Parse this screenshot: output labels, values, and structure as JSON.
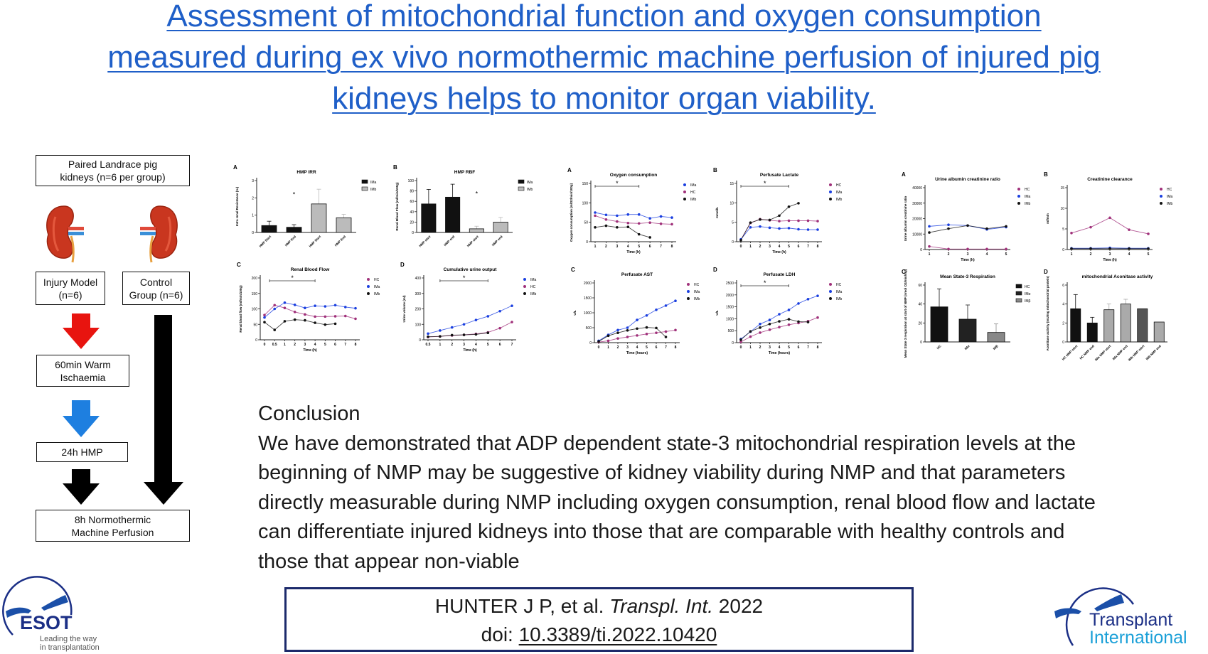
{
  "title": {
    "lines": [
      "Assessment of mitochondrial function and oxygen consumption",
      "measured during ex vivo normothermic machine perfusion of injured pig",
      "kidneys helps to monitor organ viability."
    ]
  },
  "flowchart": {
    "start": "Paired Landrace pig kidneys (n=6 per group)",
    "injury": "Injury Model (n=6)",
    "control": "Control Group (n=6)",
    "warm_ischaemia": "60min Warm Ischaemia",
    "hmp": "24h HMP",
    "nmp": "8h Normothermic Machine Perfusion",
    "arrow_colors": {
      "warm": "#e8140f",
      "hmp": "#1e7fe0",
      "nmp": "#000000"
    }
  },
  "colors": {
    "title": "#1f5fc8",
    "IMa": "#1a3fe0",
    "HC": "#a0307a",
    "IMb": "#111111",
    "cite_border": "#1c2a6b"
  },
  "chart_data": [
    {
      "panel": "A",
      "type": "bar",
      "title": "HMP IRR",
      "ylabel": "Intra renal Resistance (ru)",
      "xlabel": "",
      "ylim": [
        0,
        3
      ],
      "yticks": [
        0,
        1,
        2,
        3
      ],
      "categories": [
        "HMP Start",
        "HMP End",
        "HMP Start",
        "HMP End"
      ],
      "values": [
        0.4,
        0.3,
        1.65,
        0.85
      ],
      "errors": [
        0.25,
        0.15,
        0.85,
        0.2
      ],
      "colors": [
        "#111111",
        "#111111",
        "#bbbbbb",
        "#bbbbbb"
      ],
      "legend": [
        {
          "name": "IMa",
          "color": "#111111"
        },
        {
          "name": "IMb",
          "color": "#bbbbbb"
        }
      ],
      "star": {
        "index": 1,
        "value": 2.2
      }
    },
    {
      "panel": "B",
      "type": "bar",
      "title": "HMP RBF",
      "ylabel": "Renal Blood Flow (ml/min/100g)",
      "xlabel": "",
      "ylim": [
        0,
        100
      ],
      "yticks": [
        0,
        20,
        40,
        60,
        80,
        100
      ],
      "categories": [
        "HMP start",
        "HMP end",
        "HMP start",
        "HMP end"
      ],
      "values": [
        55,
        68,
        7,
        20
      ],
      "errors": [
        28,
        25,
        5,
        9
      ],
      "colors": [
        "#111111",
        "#111111",
        "#bbbbbb",
        "#bbbbbb"
      ],
      "legend": [
        {
          "name": "IMa",
          "color": "#111111"
        },
        {
          "name": "IMb",
          "color": "#bbbbbb"
        }
      ],
      "star": {
        "index": 2,
        "value": 75
      }
    },
    {
      "panel": "C",
      "type": "line",
      "title": "Renal Blood Flow",
      "ylabel": "Renal blood flow (ml/min/100g)",
      "xlabel": "Time (h)",
      "ylim": [
        0,
        200
      ],
      "yticks": [
        0,
        50,
        100,
        150,
        200
      ],
      "x": [
        "0",
        "0.5",
        "1",
        "2",
        "3",
        "4",
        "5",
        "6",
        "7",
        "8"
      ],
      "sig": [
        0.5,
        5
      ],
      "series": [
        {
          "name": "HC",
          "color": "#a0307a",
          "values": [
            80,
            112,
            103,
            90,
            82,
            75,
            75,
            76,
            77,
            68
          ]
        },
        {
          "name": "IMa",
          "color": "#1a3fe0",
          "values": [
            72,
            100,
            120,
            113,
            103,
            110,
            108,
            112,
            106,
            102
          ]
        },
        {
          "name": "IMb",
          "color": "#111111",
          "values": [
            57,
            32,
            60,
            65,
            63,
            55,
            49,
            52,
            null,
            null
          ]
        }
      ]
    },
    {
      "panel": "D",
      "type": "line",
      "title": "Cumulative urine output",
      "ylabel": "Urine volume (ml)",
      "xlabel": "Time (h)",
      "ylim": [
        0,
        400
      ],
      "yticks": [
        0,
        100,
        200,
        300,
        400
      ],
      "x": [
        "0.5",
        "1",
        "2",
        "3",
        "4",
        "5",
        "6",
        "7"
      ],
      "sig": [
        1,
        5
      ],
      "series": [
        {
          "name": "IMa",
          "color": "#1a3fe0",
          "values": [
            40,
            60,
            80,
            100,
            128,
            152,
            185,
            220
          ]
        },
        {
          "name": "HC",
          "color": "#a0307a",
          "values": [
            18,
            22,
            28,
            32,
            38,
            48,
            75,
            115
          ]
        },
        {
          "name": "IMb",
          "color": "#111111",
          "values": [
            20,
            22,
            30,
            32,
            35,
            45,
            null,
            null
          ]
        }
      ]
    },
    {
      "panel": "A",
      "type": "line",
      "title": "Oxygen consumption",
      "ylabel": "Oxygen consumption (mlO2/min/100g)",
      "xlabel": "Time (h)",
      "ylim": [
        0,
        150
      ],
      "yticks": [
        0,
        50,
        100,
        150
      ],
      "x": [
        "1",
        "2",
        "3",
        "4",
        "5",
        "6",
        "7",
        "8"
      ],
      "sig": [
        0,
        4
      ],
      "series": [
        {
          "name": "IMa",
          "color": "#1a3fe0",
          "values": [
            75,
            69,
            67,
            70,
            70,
            60,
            65,
            62
          ]
        },
        {
          "name": "HC",
          "color": "#a0307a",
          "values": [
            67,
            57,
            52,
            48,
            47,
            49,
            46,
            45
          ]
        },
        {
          "name": "IMb",
          "color": "#111111",
          "values": [
            37,
            41,
            37,
            38,
            19,
            11,
            null,
            null
          ]
        }
      ]
    },
    {
      "panel": "B",
      "type": "line",
      "title": "Perfusate Lactate",
      "ylabel": "mmol/L",
      "xlabel": "Time (h)",
      "ylim": [
        0,
        15
      ],
      "yticks": [
        0,
        5,
        10,
        15
      ],
      "x": [
        "0",
        "1",
        "2",
        "3",
        "4",
        "5",
        "6",
        "7",
        "8"
      ],
      "sig": [
        0,
        5
      ],
      "series": [
        {
          "name": "HC",
          "color": "#a0307a",
          "values": [
            0.5,
            4.8,
            5.8,
            5.5,
            5.3,
            5.4,
            5.4,
            5.4,
            5.3
          ]
        },
        {
          "name": "IMa",
          "color": "#1a3fe0",
          "values": [
            0.6,
            3.7,
            3.9,
            3.6,
            3.4,
            3.5,
            3.2,
            3.1,
            3.1
          ]
        },
        {
          "name": "IMb",
          "color": "#111111",
          "values": [
            0.4,
            4.9,
            5.7,
            5.6,
            6.7,
            9.0,
            9.9,
            null,
            null
          ]
        }
      ]
    },
    {
      "panel": "C",
      "type": "line",
      "title": "Perfusate AST",
      "ylabel": "U/L",
      "xlabel": "Time (hours)",
      "ylim": [
        0,
        2000
      ],
      "yticks": [
        0,
        500,
        1000,
        1500,
        2000
      ],
      "x": [
        "0",
        "1",
        "2",
        "3",
        "4",
        "5",
        "6",
        "7",
        "8"
      ],
      "series": [
        {
          "name": "HC",
          "color": "#a0307a",
          "values": [
            20,
            60,
            140,
            190,
            240,
            290,
            330,
            370,
            420
          ]
        },
        {
          "name": "IMa",
          "color": "#1a3fe0",
          "values": [
            60,
            260,
            420,
            500,
            760,
            910,
            1100,
            1240,
            1400
          ]
        },
        {
          "name": "IMb",
          "color": "#111111",
          "values": [
            40,
            230,
            330,
            410,
            470,
            510,
            490,
            190,
            null
          ]
        }
      ]
    },
    {
      "panel": "D",
      "type": "line",
      "title": "Perfusate LDH",
      "ylabel": "U/L",
      "xlabel": "Time (hours)",
      "ylim": [
        0,
        2500
      ],
      "yticks": [
        0,
        500,
        1000,
        1500,
        2000,
        2500
      ],
      "x": [
        "0",
        "1",
        "2",
        "3",
        "4",
        "5",
        "6",
        "7",
        "8"
      ],
      "sig": [
        0,
        5
      ],
      "series": [
        {
          "name": "HC",
          "color": "#a0307a",
          "values": [
            30,
            250,
            420,
            540,
            650,
            750,
            820,
            900,
            1050
          ]
        },
        {
          "name": "IMa",
          "color": "#1a3fe0",
          "values": [
            150,
            460,
            780,
            950,
            1190,
            1370,
            1640,
            1820,
            1960
          ]
        },
        {
          "name": "IMb",
          "color": "#111111",
          "values": [
            120,
            470,
            630,
            780,
            890,
            980,
            880,
            860,
            null
          ]
        }
      ]
    },
    {
      "panel": "A",
      "type": "line",
      "title": "Urine albumin creatinine ratio",
      "ylabel": "Urine albumin creatinine ratio",
      "xlabel": "Time (h)",
      "ylim": [
        0,
        40000
      ],
      "yticks": [
        0,
        10000,
        20000,
        30000,
        40000
      ],
      "x": [
        "1",
        "2",
        "3",
        "4",
        "5"
      ],
      "series": [
        {
          "name": "HC",
          "color": "#a0307a",
          "values": [
            2000,
            300,
            300,
            300,
            300
          ]
        },
        {
          "name": "IMa",
          "color": "#1a3fe0",
          "values": [
            15000,
            16000,
            15500,
            13000,
            14500
          ]
        },
        {
          "name": "IMb",
          "color": "#111111",
          "values": [
            11000,
            13500,
            15500,
            13500,
            15000
          ]
        }
      ]
    },
    {
      "panel": "B",
      "type": "line",
      "title": "Creatinine clearance",
      "ylabel": "ml/min",
      "xlabel": "Time (h)",
      "ylim": [
        0,
        15
      ],
      "yticks": [
        0,
        5,
        10,
        15
      ],
      "x": [
        "1",
        "2",
        "3",
        "4",
        "5"
      ],
      "series": [
        {
          "name": "HC",
          "color": "#a0307a",
          "values": [
            4,
            5.4,
            7.7,
            4.8,
            3.8
          ]
        },
        {
          "name": "IMa",
          "color": "#1a3fe0",
          "values": [
            0.3,
            0.3,
            0.4,
            0.3,
            0.3
          ]
        },
        {
          "name": "IMb",
          "color": "#111111",
          "values": [
            0.2,
            0.2,
            0.2,
            0.2,
            0.2
          ]
        }
      ]
    },
    {
      "panel": "C",
      "type": "bar",
      "title": "Mean State-3 Respiration",
      "ylabel": "Mean State 3 respiration at start of NMP (nmol O2/min/mg)",
      "xlabel": "",
      "ylim": [
        0,
        60
      ],
      "yticks": [
        0,
        20,
        40,
        60
      ],
      "categories": [
        "HC",
        "IMα",
        "IMβ"
      ],
      "values": [
        37,
        24,
        10
      ],
      "errors": [
        19,
        15,
        9
      ],
      "colors": [
        "#111111",
        "#222222",
        "#888888"
      ],
      "legend": [
        {
          "name": "HC",
          "color": "#111111"
        },
        {
          "name": "IMα",
          "color": "#222222"
        },
        {
          "name": "IMβ",
          "color": "#888888"
        }
      ]
    },
    {
      "panel": "D",
      "type": "bar",
      "title": "mitochondrial Aconitase activity",
      "ylabel": "Aconitase activity (mU/mg mitochondrial protein)",
      "xlabel": "",
      "ylim": [
        0,
        6
      ],
      "yticks": [
        0,
        2,
        4,
        6
      ],
      "categories": [
        "HC NMP start",
        "HC NMP end",
        "IMa NMP start",
        "IMa NMP end",
        "IMb NMP start",
        "IMb NMP end"
      ],
      "values": [
        3.5,
        2,
        3.4,
        4,
        3.5,
        2.1
      ],
      "errors": [
        1.5,
        0.6,
        0.6,
        0.5,
        0,
        0
      ],
      "colors": [
        "#111111",
        "#111111",
        "#aaaaaa",
        "#aaaaaa",
        "#555555",
        "#aaaaaa"
      ]
    }
  ],
  "conclusion": {
    "heading": "Conclusion",
    "lines": [
      "We have demonstrated that ADP dependent state-3 mitochondrial respiration levels at the",
      "beginning of NMP may be suggestive of kidney viability during NMP and that parameters",
      "directly measurable during NMP including oxygen consumption, renal blood flow and lactate",
      "can differentiate injured kidneys into those that are comparable with healthy controls and",
      "those that appear non-viable"
    ]
  },
  "citation": {
    "authors": "HUNTER J P, et al.",
    "journal": "Transpl. Int.",
    "year": "2022",
    "doi_label": "doi:",
    "doi": "10.3389/ti.2022.10420"
  },
  "logos": {
    "esot": {
      "name": "ESOT",
      "tagline1": "Leading the way",
      "tagline2": "in transplantation"
    },
    "ti": {
      "line1": "Transplant",
      "line2": "International"
    }
  }
}
